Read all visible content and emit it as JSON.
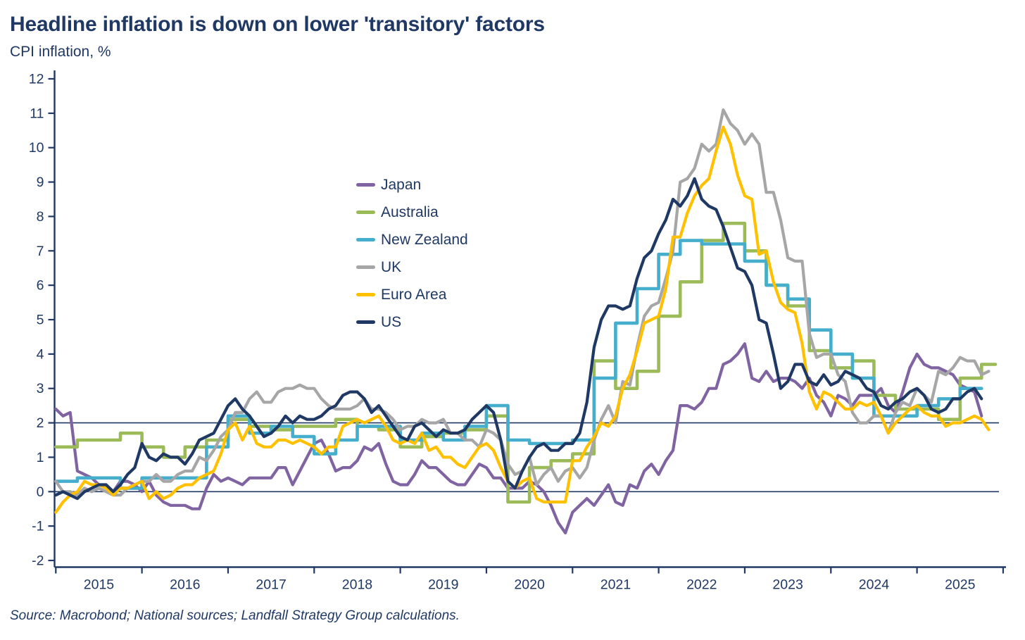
{
  "header": {
    "title": "Headline inflation is down on lower 'transitory' factors",
    "subtitle": "CPI inflation, %"
  },
  "footer": {
    "source": "Source: Macrobond; National sources; Landfall Strategy Group calculations."
  },
  "chart_data": {
    "type": "line",
    "title": "Headline inflation is down on lower 'transitory' factors",
    "ylabel": "CPI inflation, %",
    "xlabel": "",
    "grid": "reference lines at 0 and 2 only",
    "legend_position": "inside-left-center",
    "y_axis": {
      "min": -2,
      "max": 12,
      "tick_step": 1,
      "ticks": [
        -2,
        -1,
        0,
        1,
        2,
        3,
        4,
        5,
        6,
        7,
        8,
        9,
        10,
        11,
        12
      ]
    },
    "x_axis": {
      "start": "2015-01",
      "end": "2025-11",
      "tick_years": [
        "2015",
        "2016",
        "2017",
        "2018",
        "2019",
        "2020",
        "2021",
        "2022",
        "2023",
        "2024",
        "2025"
      ]
    },
    "reference_lines": [
      0,
      2
    ],
    "series": [
      {
        "name": "Japan",
        "color": "#8064A2",
        "frequency": "monthly",
        "start": "2015-01",
        "values": [
          2.4,
          2.2,
          2.3,
          0.6,
          0.5,
          0.4,
          0.2,
          0.2,
          0.0,
          0.3,
          0.3,
          0.2,
          0.0,
          0.3,
          -0.1,
          -0.3,
          -0.4,
          -0.4,
          -0.4,
          -0.5,
          -0.5,
          0.1,
          0.5,
          0.3,
          0.4,
          0.3,
          0.2,
          0.4,
          0.4,
          0.4,
          0.4,
          0.7,
          0.7,
          0.2,
          0.6,
          1.0,
          1.4,
          1.5,
          1.1,
          0.6,
          0.7,
          0.7,
          0.9,
          1.3,
          1.2,
          1.4,
          0.8,
          0.3,
          0.2,
          0.2,
          0.5,
          0.9,
          0.7,
          0.7,
          0.5,
          0.3,
          0.2,
          0.2,
          0.5,
          0.8,
          0.7,
          0.4,
          0.4,
          0.1,
          0.1,
          0.1,
          0.3,
          0.2,
          0.0,
          -0.4,
          -0.9,
          -1.2,
          -0.6,
          -0.4,
          -0.2,
          -0.4,
          -0.1,
          0.2,
          -0.3,
          -0.4,
          0.2,
          0.1,
          0.6,
          0.8,
          0.5,
          0.9,
          1.2,
          2.5,
          2.5,
          2.4,
          2.6,
          3.0,
          3.0,
          3.7,
          3.8,
          4.0,
          4.3,
          3.3,
          3.2,
          3.5,
          3.2,
          3.3,
          3.3,
          3.2,
          3.0,
          3.3,
          2.8,
          2.6,
          2.2,
          2.8,
          2.7,
          2.5,
          2.8,
          2.8,
          2.8,
          3.0,
          2.5,
          2.3,
          2.9,
          3.6,
          4.0,
          3.7,
          3.6,
          3.6,
          3.5,
          3.4,
          3.1,
          3.0,
          2.9,
          2.2
        ]
      },
      {
        "name": "Australia",
        "color": "#9BBB59",
        "frequency": "quarterly",
        "start": "2015-Q1",
        "values": [
          1.3,
          1.5,
          1.5,
          1.7,
          1.3,
          1.0,
          1.3,
          1.5,
          2.1,
          1.9,
          1.8,
          1.9,
          1.9,
          2.1,
          1.9,
          1.8,
          1.3,
          1.6,
          1.7,
          1.8,
          2.2,
          -0.3,
          0.7,
          0.9,
          1.1,
          3.8,
          3.0,
          3.5,
          5.1,
          6.1,
          7.3,
          7.8,
          7.0,
          6.0,
          5.4,
          4.1,
          3.6,
          3.8,
          2.8,
          2.4,
          2.4,
          2.1,
          3.3,
          3.7
        ]
      },
      {
        "name": "New Zealand",
        "color": "#45AECC",
        "frequency": "quarterly",
        "start": "2015-Q1",
        "values": [
          0.3,
          0.4,
          0.4,
          0.1,
          0.4,
          0.4,
          0.4,
          1.3,
          2.2,
          1.7,
          1.9,
          1.6,
          1.1,
          1.5,
          1.9,
          1.9,
          1.5,
          1.7,
          1.5,
          1.9,
          2.5,
          1.5,
          1.4,
          1.4,
          1.5,
          3.3,
          4.9,
          5.9,
          6.9,
          7.3,
          7.2,
          7.2,
          6.7,
          6.0,
          5.6,
          4.7,
          4.0,
          3.3,
          2.2,
          2.2,
          2.5,
          2.7,
          3.0
        ]
      },
      {
        "name": "UK",
        "color": "#A6A6A6",
        "frequency": "monthly",
        "start": "2015-01",
        "values": [
          0.3,
          0.0,
          0.0,
          -0.1,
          0.1,
          0.0,
          0.1,
          0.0,
          -0.1,
          -0.1,
          0.1,
          0.2,
          0.3,
          0.3,
          0.5,
          0.3,
          0.3,
          0.5,
          0.6,
          0.6,
          1.0,
          0.9,
          1.2,
          1.6,
          1.8,
          2.3,
          2.3,
          2.7,
          2.9,
          2.6,
          2.6,
          2.9,
          3.0,
          3.0,
          3.1,
          3.0,
          3.0,
          2.7,
          2.5,
          2.4,
          2.4,
          2.4,
          2.5,
          2.7,
          2.4,
          2.4,
          2.3,
          2.1,
          1.8,
          1.9,
          1.9,
          2.1,
          2.0,
          2.0,
          2.1,
          1.7,
          1.7,
          1.5,
          1.5,
          1.3,
          1.8,
          1.7,
          1.5,
          0.8,
          0.5,
          0.6,
          1.0,
          0.2,
          0.5,
          0.7,
          0.3,
          0.6,
          0.7,
          0.4,
          0.7,
          1.5,
          2.1,
          2.5,
          2.0,
          3.2,
          3.1,
          4.2,
          5.1,
          5.4,
          5.5,
          6.2,
          7.0,
          9.0,
          9.1,
          9.4,
          10.1,
          9.9,
          10.1,
          11.1,
          10.7,
          10.5,
          10.1,
          10.4,
          10.1,
          8.7,
          8.7,
          7.9,
          6.8,
          6.7,
          6.7,
          4.6,
          3.9,
          4.0,
          4.0,
          3.4,
          3.2,
          2.3,
          2.0,
          2.0,
          2.2,
          2.2,
          1.7,
          2.3,
          2.6,
          2.5,
          3.0,
          2.8,
          2.6,
          3.5,
          3.4,
          3.6,
          3.9,
          3.8,
          3.8,
          3.4,
          3.5
        ]
      },
      {
        "name": "Euro Area",
        "color": "#FFC000",
        "frequency": "monthly",
        "start": "2015-01",
        "values": [
          -0.6,
          -0.3,
          -0.1,
          0.0,
          0.3,
          0.2,
          0.2,
          0.1,
          -0.1,
          0.1,
          0.1,
          0.2,
          0.3,
          -0.2,
          0.0,
          -0.2,
          -0.1,
          0.1,
          0.2,
          0.2,
          0.4,
          0.5,
          0.6,
          1.1,
          1.8,
          2.0,
          1.5,
          1.9,
          1.4,
          1.3,
          1.3,
          1.5,
          1.5,
          1.4,
          1.5,
          1.4,
          1.3,
          1.1,
          1.3,
          1.3,
          1.9,
          2.0,
          2.1,
          2.0,
          2.1,
          2.2,
          1.9,
          1.5,
          1.4,
          1.5,
          1.4,
          1.7,
          1.2,
          1.3,
          1.0,
          1.0,
          0.8,
          0.7,
          1.0,
          1.3,
          1.4,
          1.2,
          0.7,
          0.3,
          0.1,
          0.3,
          0.4,
          -0.2,
          -0.3,
          -0.3,
          -0.3,
          -0.3,
          0.9,
          0.9,
          1.3,
          1.6,
          2.0,
          1.9,
          2.2,
          3.0,
          3.4,
          4.1,
          4.9,
          5.0,
          5.1,
          5.9,
          7.4,
          7.4,
          8.1,
          8.6,
          8.9,
          9.1,
          9.9,
          10.6,
          10.1,
          9.2,
          8.6,
          8.5,
          6.9,
          7.0,
          6.1,
          5.5,
          5.3,
          5.2,
          4.3,
          2.9,
          2.4,
          2.9,
          2.8,
          2.6,
          2.4,
          2.4,
          2.6,
          2.5,
          2.6,
          2.2,
          1.7,
          2.0,
          2.2,
          2.4,
          2.5,
          2.3,
          2.2,
          2.2,
          1.9,
          2.0,
          2.0,
          2.1,
          2.2,
          2.1,
          1.8
        ]
      },
      {
        "name": "US",
        "color": "#1F3864",
        "frequency": "monthly",
        "start": "2015-01",
        "values": [
          -0.1,
          0.0,
          -0.1,
          -0.2,
          0.0,
          0.1,
          0.2,
          0.2,
          0.0,
          0.2,
          0.5,
          0.7,
          1.4,
          1.0,
          0.9,
          1.1,
          1.0,
          1.0,
          0.8,
          1.1,
          1.5,
          1.6,
          1.7,
          2.1,
          2.5,
          2.7,
          2.4,
          2.2,
          1.9,
          1.6,
          1.7,
          1.9,
          2.2,
          2.0,
          2.2,
          2.1,
          2.1,
          2.2,
          2.4,
          2.5,
          2.8,
          2.9,
          2.9,
          2.7,
          2.3,
          2.5,
          2.2,
          1.9,
          1.6,
          1.5,
          1.9,
          2.0,
          1.8,
          1.6,
          1.8,
          1.7,
          1.7,
          1.8,
          2.1,
          2.3,
          2.5,
          2.3,
          1.5,
          0.3,
          0.1,
          0.6,
          1.0,
          1.3,
          1.4,
          1.2,
          1.2,
          1.4,
          1.4,
          1.7,
          2.6,
          4.2,
          5.0,
          5.4,
          5.4,
          5.3,
          5.4,
          6.2,
          6.8,
          7.0,
          7.5,
          7.9,
          8.5,
          8.3,
          8.6,
          9.1,
          8.5,
          8.3,
          8.2,
          7.7,
          7.1,
          6.5,
          6.4,
          6.0,
          5.0,
          4.9,
          4.0,
          3.0,
          3.2,
          3.7,
          3.7,
          3.2,
          3.1,
          3.4,
          3.1,
          3.2,
          3.5,
          3.4,
          3.3,
          3.0,
          2.9,
          2.5,
          2.4,
          2.6,
          2.7,
          2.9,
          3.0,
          2.8,
          2.4,
          2.3,
          2.4,
          2.7,
          2.7,
          2.9,
          3.0,
          2.7
        ]
      }
    ],
    "colors": {
      "text": "#1F3864",
      "axis": "#1F3864",
      "background": "#FFFFFF"
    }
  }
}
